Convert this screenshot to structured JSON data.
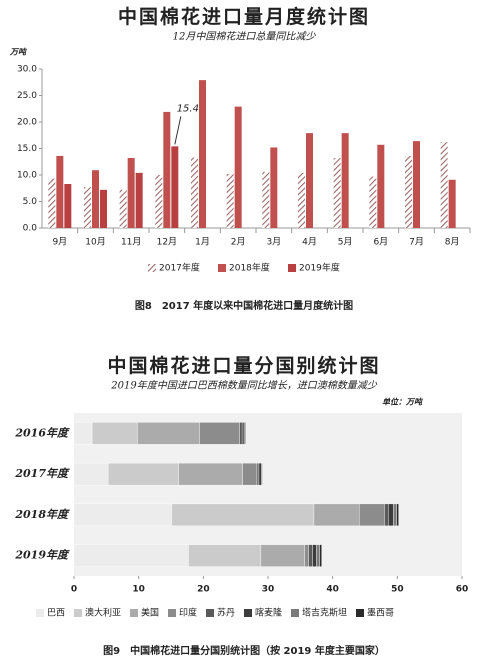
{
  "chart_data": [
    {
      "type": "bar",
      "title": "中国棉花进口量月度统计图",
      "subtitle": "12月中国棉花进口总量同比减少",
      "unit": "万吨",
      "caption": "图8　2017 年度以来中国棉花进口量月度统计图",
      "annotation": "15.4",
      "categories": [
        "9月",
        "10月",
        "11月",
        "12月",
        "1月",
        "2月",
        "3月",
        "4月",
        "5月",
        "6月",
        "7月",
        "8月"
      ],
      "series": [
        {
          "name": "2017年度",
          "color": "#b08080",
          "hatch": true,
          "values": [
            9.3,
            7.7,
            7.2,
            10.0,
            13.3,
            10.2,
            10.6,
            10.4,
            13.2,
            9.7,
            13.6,
            16.2
          ]
        },
        {
          "name": "2018年度",
          "color": "#c0504d",
          "values": [
            13.6,
            10.9,
            13.2,
            21.9,
            27.9,
            22.9,
            15.2,
            17.9,
            17.9,
            15.7,
            16.4,
            9.1
          ]
        },
        {
          "name": "2019年度",
          "color": "#b84040",
          "values": [
            8.3,
            7.2,
            10.4,
            15.4,
            null,
            null,
            null,
            null,
            null,
            null,
            null,
            null
          ]
        }
      ],
      "ylim": [
        0,
        30
      ],
      "yticks": [
        {
          "value": 0,
          "label": "0.0"
        },
        {
          "value": 5,
          "label": "5.0"
        },
        {
          "value": 10,
          "label": "10.0"
        },
        {
          "value": 15,
          "label": "15.0"
        },
        {
          "value": 20,
          "label": "20.0"
        },
        {
          "value": 25,
          "label": "25.0"
        },
        {
          "value": 30,
          "label": "30.0"
        }
      ]
    },
    {
      "type": "stacked_barh",
      "title": "中国棉花进口量分国别统计图",
      "subtitle": "2019年度中国进口巴西棉数量同比增长，进口澳棉数量减少",
      "unit": "单位：万吨",
      "caption": "图9　中国棉花进口量分国别统计图（按 2019 年度主要国家）",
      "categories": [
        "2016年度",
        "2017年度",
        "2018年度",
        "2019年度"
      ],
      "series": [
        {
          "name": "巴西",
          "color": "#ececec",
          "values": [
            2.8,
            5.3,
            15.1,
            17.7
          ]
        },
        {
          "name": "澳大利亚",
          "color": "#cbcbcb",
          "values": [
            7.0,
            10.9,
            22.0,
            11.2
          ]
        },
        {
          "name": "美国",
          "color": "#ababab",
          "values": [
            9.6,
            9.9,
            7.0,
            6.8
          ]
        },
        {
          "name": "印度",
          "color": "#8c8c8c",
          "values": [
            6.2,
            2.2,
            3.9,
            0.6
          ]
        },
        {
          "name": "苏丹",
          "color": "#5a5a5a",
          "values": [
            0.4,
            0.3,
            0.6,
            0.6
          ]
        },
        {
          "name": "喀麦隆",
          "color": "#3c3c3c",
          "values": [
            0.3,
            0.4,
            0.8,
            0.6
          ]
        },
        {
          "name": "塔吉克斯坦",
          "color": "#7a7a7a",
          "values": [
            0.2,
            0.1,
            0.5,
            0.5
          ]
        },
        {
          "name": "墨西哥",
          "color": "#2a2a2a",
          "values": [
            0.1,
            0.1,
            0.3,
            0.3
          ]
        }
      ],
      "xlim": [
        0,
        60
      ],
      "xticks": [
        0,
        10,
        20,
        30,
        40,
        50,
        60
      ]
    }
  ]
}
